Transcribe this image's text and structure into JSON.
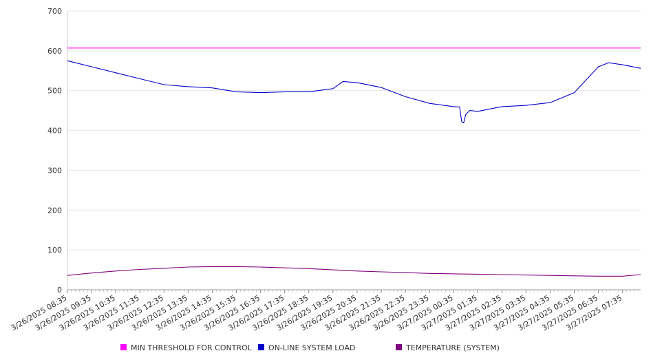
{
  "chart_data": {
    "type": "line",
    "y_ticks": [
      "0",
      "100",
      "200",
      "300",
      "400",
      "500",
      "600",
      "700"
    ],
    "ylim": [
      0,
      700
    ],
    "grid": true,
    "legend_placement": "bottom",
    "x_tick_labels": [
      "3/26/2025 08:35",
      "3/26/2025 09:35",
      "3/26/2025 10:35",
      "3/26/2025 11:35",
      "3/26/2025 12:35",
      "3/26/2025 13:35",
      "3/26/2025 14:35",
      "3/26/2025 15:35",
      "3/26/2025 16:35",
      "3/26/2025 17:35",
      "3/26/2025 18:35",
      "3/26/2025 19:35",
      "3/26/2025 20:35",
      "3/26/2025 21:35",
      "3/26/2025 22:35",
      "3/26/2025 23:35",
      "3/27/2025 00:35",
      "3/27/2025 01:35",
      "3/27/2025 02:35",
      "3/27/2025 03:35",
      "3/27/2025 04:35",
      "3/27/2025 05:35",
      "3/27/2025 06:35",
      "3/27/2025 07:35"
    ],
    "x_range": [
      "3/26/2025 08:35",
      "3/27/2025 08:20"
    ],
    "series": [
      {
        "name": "MIN THRESHOLD FOR CONTROL",
        "color": "#ff00ff",
        "x": [
          "3/26/2025 08:35",
          "3/27/2025 08:20"
        ],
        "values": [
          607,
          607
        ]
      },
      {
        "name": "ON-LINE SYSTEM LOAD",
        "color": "#0000cc",
        "x": [
          "3/26/2025 08:35",
          "3/26/2025 09:35",
          "3/26/2025 10:35",
          "3/26/2025 11:35",
          "3/26/2025 12:35",
          "3/26/2025 13:35",
          "3/26/2025 14:35",
          "3/26/2025 15:35",
          "3/26/2025 16:35",
          "3/26/2025 17:35",
          "3/26/2025 18:35",
          "3/26/2025 19:35",
          "3/26/2025 20:00",
          "3/26/2025 20:35",
          "3/26/2025 21:35",
          "3/26/2025 22:35",
          "3/26/2025 23:35",
          "3/27/2025 00:35",
          "3/27/2025 00:50",
          "3/27/2025 00:55",
          "3/27/2025 01:00",
          "3/27/2025 01:05",
          "3/27/2025 01:15",
          "3/27/2025 01:35",
          "3/27/2025 02:35",
          "3/27/2025 03:35",
          "3/27/2025 04:35",
          "3/27/2025 05:35",
          "3/27/2025 06:35",
          "3/27/2025 07:00",
          "3/27/2025 07:35",
          "3/27/2025 08:20"
        ],
        "values": [
          575,
          560,
          545,
          530,
          515,
          510,
          507,
          497,
          495,
          497,
          497,
          505,
          523,
          520,
          508,
          485,
          468,
          460,
          459,
          422,
          419,
          440,
          450,
          448,
          460,
          463,
          470,
          495,
          560,
          570,
          565,
          556
        ]
      },
      {
        "name": "TEMPERATURE (SYSTEM)",
        "color": "#800080",
        "x": [
          "3/26/2025 08:35",
          "3/26/2025 09:35",
          "3/26/2025 10:35",
          "3/26/2025 11:35",
          "3/26/2025 12:35",
          "3/26/2025 13:35",
          "3/26/2025 14:35",
          "3/26/2025 15:35",
          "3/26/2025 16:35",
          "3/26/2025 17:35",
          "3/26/2025 18:35",
          "3/26/2025 19:35",
          "3/26/2025 20:35",
          "3/26/2025 21:35",
          "3/26/2025 22:35",
          "3/26/2025 23:35",
          "3/27/2025 00:35",
          "3/27/2025 01:35",
          "3/27/2025 02:35",
          "3/27/2025 03:35",
          "3/27/2025 04:35",
          "3/27/2025 05:35",
          "3/27/2025 06:35",
          "3/27/2025 07:35",
          "3/27/2025 08:20"
        ],
        "values": [
          36,
          42,
          47,
          51,
          54,
          57,
          58,
          58,
          57,
          55,
          53,
          50,
          47,
          45,
          43,
          41,
          40,
          39,
          38,
          37,
          36,
          35,
          34,
          34,
          38
        ]
      }
    ]
  }
}
